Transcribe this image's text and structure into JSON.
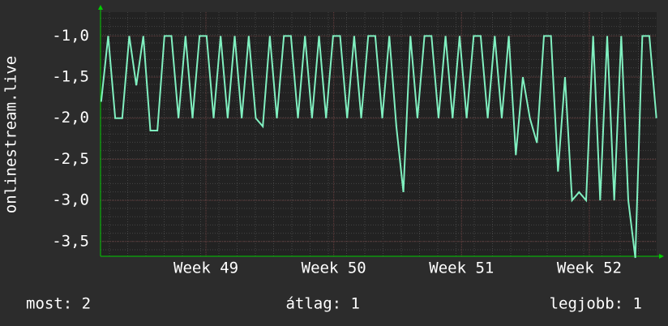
{
  "chart_data": {
    "type": "line",
    "y_label": "onlinestream.live",
    "x": [
      48.18,
      48.235,
      48.29,
      48.345,
      48.4,
      48.455,
      48.51,
      48.565,
      48.62,
      48.675,
      48.73,
      48.785,
      48.84,
      48.895,
      48.95,
      49.005,
      49.06,
      49.115,
      49.17,
      49.225,
      49.28,
      49.335,
      49.39,
      49.445,
      49.5,
      49.555,
      49.61,
      49.665,
      49.72,
      49.775,
      49.83,
      49.885,
      49.94,
      49.995,
      50.05,
      50.105,
      50.16,
      50.215,
      50.27,
      50.325,
      50.38,
      50.435,
      50.49,
      50.545,
      50.6,
      50.655,
      50.71,
      50.765,
      50.82,
      50.875,
      50.93,
      50.985,
      51.04,
      51.095,
      51.15,
      51.205,
      51.26,
      51.315,
      51.37,
      51.425,
      51.48,
      51.535,
      51.59,
      51.645,
      51.7,
      51.755,
      51.81,
      51.865,
      51.92,
      51.975,
      52.03,
      52.085,
      52.14,
      52.195,
      52.25,
      52.305,
      52.36,
      52.415,
      52.47,
      52.525
    ],
    "series": [
      {
        "color": "#80f0c0",
        "values": [
          -1.8,
          -1,
          -2,
          -2,
          -1,
          -1.6,
          -1,
          -2.15,
          -2.15,
          -1,
          -1,
          -2,
          -1,
          -2,
          -1,
          -1,
          -2,
          -1,
          -2,
          -1,
          -2,
          -1,
          -2,
          -2.1,
          -1,
          -2,
          -1,
          -1,
          -2,
          -1,
          -2,
          -1,
          -2,
          -1,
          -1,
          -2,
          -1,
          -2,
          -1,
          -1,
          -2,
          -1,
          -2.1,
          -2.9,
          -1,
          -2,
          -1,
          -1,
          -2,
          -1,
          -2,
          -1,
          -2,
          -1,
          -1,
          -2,
          -1,
          -2,
          -1,
          -2.45,
          -1.5,
          -2,
          -2.3,
          -1,
          -1,
          -2.65,
          -1.5,
          -3,
          -2.9,
          -3,
          -1,
          -3,
          -1,
          -3,
          -1,
          -3,
          -3.7,
          -1,
          -1,
          -2
        ]
      }
    ],
    "xlim": [
      48.175,
      52.527
    ],
    "xticks": [
      {
        "value": 49,
        "label": "Week 49"
      },
      {
        "value": 50,
        "label": "Week 50"
      },
      {
        "value": 51,
        "label": "Week 51"
      },
      {
        "value": 52,
        "label": "Week 52"
      }
    ],
    "ylim": [
      -3.68,
      -0.71
    ],
    "yticks": [
      {
        "value": -1,
        "label": "-1,0"
      },
      {
        "value": -1.5,
        "label": "-1,5"
      },
      {
        "value": -2,
        "label": "-2,0"
      },
      {
        "value": -2.5,
        "label": "-2,5"
      },
      {
        "value": -3,
        "label": "-3,0"
      },
      {
        "value": -3.5,
        "label": "-3,5"
      }
    ],
    "grid": true,
    "footer": [
      "most: 2",
      "átlag: 1",
      "legjobb: 1"
    ]
  }
}
